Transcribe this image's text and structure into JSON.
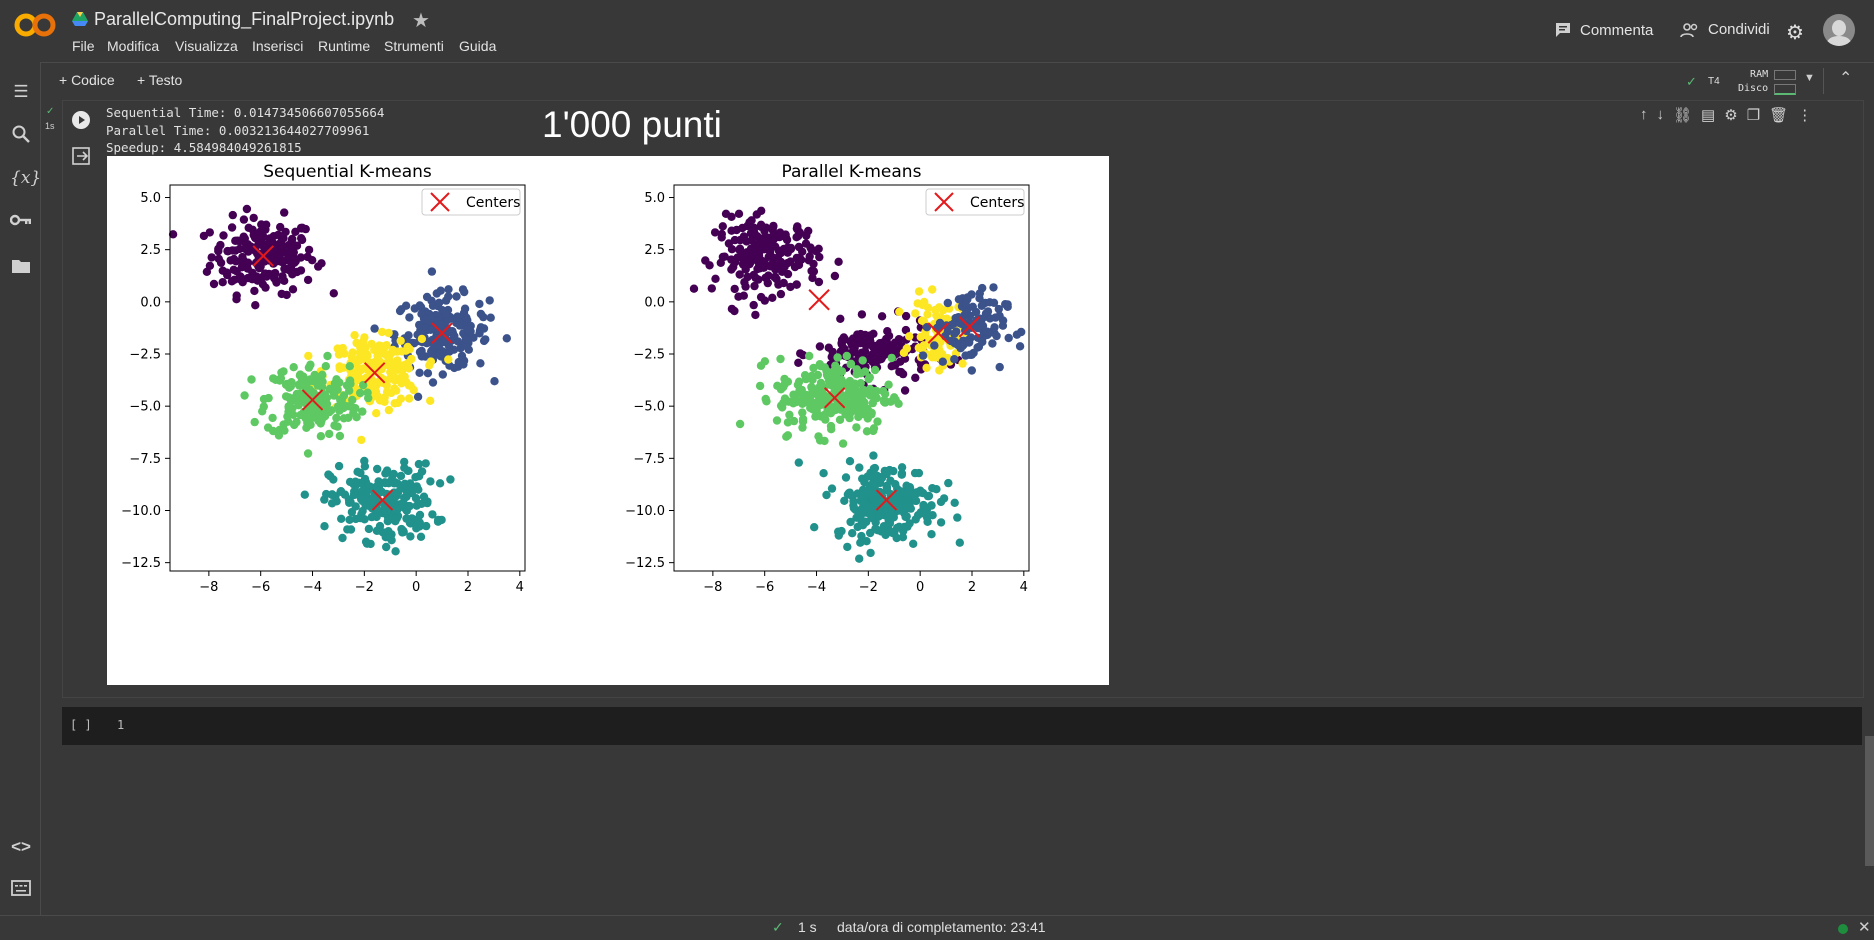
{
  "header": {
    "title": "ParallelComputing_FinalProject.ipynb",
    "menu": [
      "File",
      "Modifica",
      "Visualizza",
      "Inserisci",
      "Runtime",
      "Strumenti",
      "Guida"
    ],
    "comment_label": "Commenta",
    "share_label": "Condividi"
  },
  "toolbar": {
    "code_label": "+ Codice",
    "text_label": "+ Testo",
    "runtime_label": "T4",
    "ram_label": "RAM",
    "disk_label": "Disco"
  },
  "cell1": {
    "exec_time": "1s",
    "output_lines": [
      "Sequential Time: 0.014734506607055664",
      "Parallel Time: 0.003213644027709961",
      "Speedup: 4.584984049261815"
    ],
    "big_title": "1'000 punti"
  },
  "cell2": {
    "brackets": "[ ]",
    "line_number": "1"
  },
  "status": {
    "time": "1 s",
    "completion": "data/ora di completamento: 23:41"
  },
  "colors": {
    "purple": "#440154",
    "blue": "#3b528b",
    "teal": "#21918c",
    "green": "#5ec962",
    "yellow": "#fde725",
    "center": "#e31a1c"
  },
  "chart_data": [
    {
      "type": "scatter",
      "title": "Sequential K-means",
      "legend": [
        "Centers"
      ],
      "legend_position": "top-right",
      "xlim": [
        -9.5,
        4.2
      ],
      "ylim": [
        -12.9,
        5.6
      ],
      "xticks": [
        -8,
        -6,
        -4,
        -2,
        0,
        2,
        4
      ],
      "yticks": [
        5.0,
        2.5,
        0.0,
        -2.5,
        -5.0,
        -7.5,
        -10.0,
        -12.5
      ],
      "clusters": [
        {
          "color": "purple",
          "center": [
            -5.9,
            2.2
          ],
          "spread": [
            1.0,
            0.9
          ],
          "n": 200
        },
        {
          "color": "blue",
          "center": [
            1.0,
            -1.5
          ],
          "spread": [
            0.9,
            0.9
          ],
          "n": 190
        },
        {
          "color": "yellow",
          "center": [
            -1.6,
            -3.4
          ],
          "spread": [
            0.9,
            0.8
          ],
          "n": 200
        },
        {
          "color": "green",
          "center": [
            -4.0,
            -4.7
          ],
          "spread": [
            0.9,
            0.9
          ],
          "n": 190
        },
        {
          "color": "teal",
          "center": [
            -1.3,
            -9.6
          ],
          "spread": [
            1.0,
            0.9
          ],
          "n": 220
        }
      ],
      "centers": [
        [
          -5.9,
          2.2
        ],
        [
          1.0,
          -1.5
        ],
        [
          -1.6,
          -3.4
        ],
        [
          -4.0,
          -4.7
        ],
        [
          -1.3,
          -9.5
        ]
      ]
    },
    {
      "type": "scatter",
      "title": "Parallel K-means",
      "legend": [
        "Centers"
      ],
      "legend_position": "top-right",
      "xlim": [
        -9.5,
        4.2
      ],
      "ylim": [
        -12.9,
        5.6
      ],
      "xticks": [
        -8,
        -6,
        -4,
        -2,
        0,
        2,
        4
      ],
      "yticks": [
        5.0,
        2.5,
        0.0,
        -2.5,
        -5.0,
        -7.5,
        -10.0,
        -12.5
      ],
      "clusters": [
        {
          "color": "purple",
          "center": [
            -5.9,
            2.2
          ],
          "spread": [
            1.0,
            0.9
          ],
          "n": 200
        },
        {
          "color": "purple",
          "center": [
            -1.8,
            -2.5
          ],
          "spread": [
            1.1,
            0.7
          ],
          "n": 150
        },
        {
          "color": "yellow",
          "center": [
            0.7,
            -1.5
          ],
          "spread": [
            0.5,
            0.8
          ],
          "n": 90
        },
        {
          "color": "blue",
          "center": [
            1.9,
            -1.2
          ],
          "spread": [
            0.7,
            0.9
          ],
          "n": 110
        },
        {
          "color": "green",
          "center": [
            -3.3,
            -4.5
          ],
          "spread": [
            1.1,
            0.9
          ],
          "n": 230
        },
        {
          "color": "teal",
          "center": [
            -1.3,
            -9.6
          ],
          "spread": [
            1.0,
            0.9
          ],
          "n": 220
        }
      ],
      "centers": [
        [
          -3.9,
          0.1
        ],
        [
          0.7,
          -1.5
        ],
        [
          1.9,
          -1.2
        ],
        [
          -3.3,
          -4.6
        ],
        [
          -1.3,
          -9.5
        ]
      ]
    }
  ]
}
